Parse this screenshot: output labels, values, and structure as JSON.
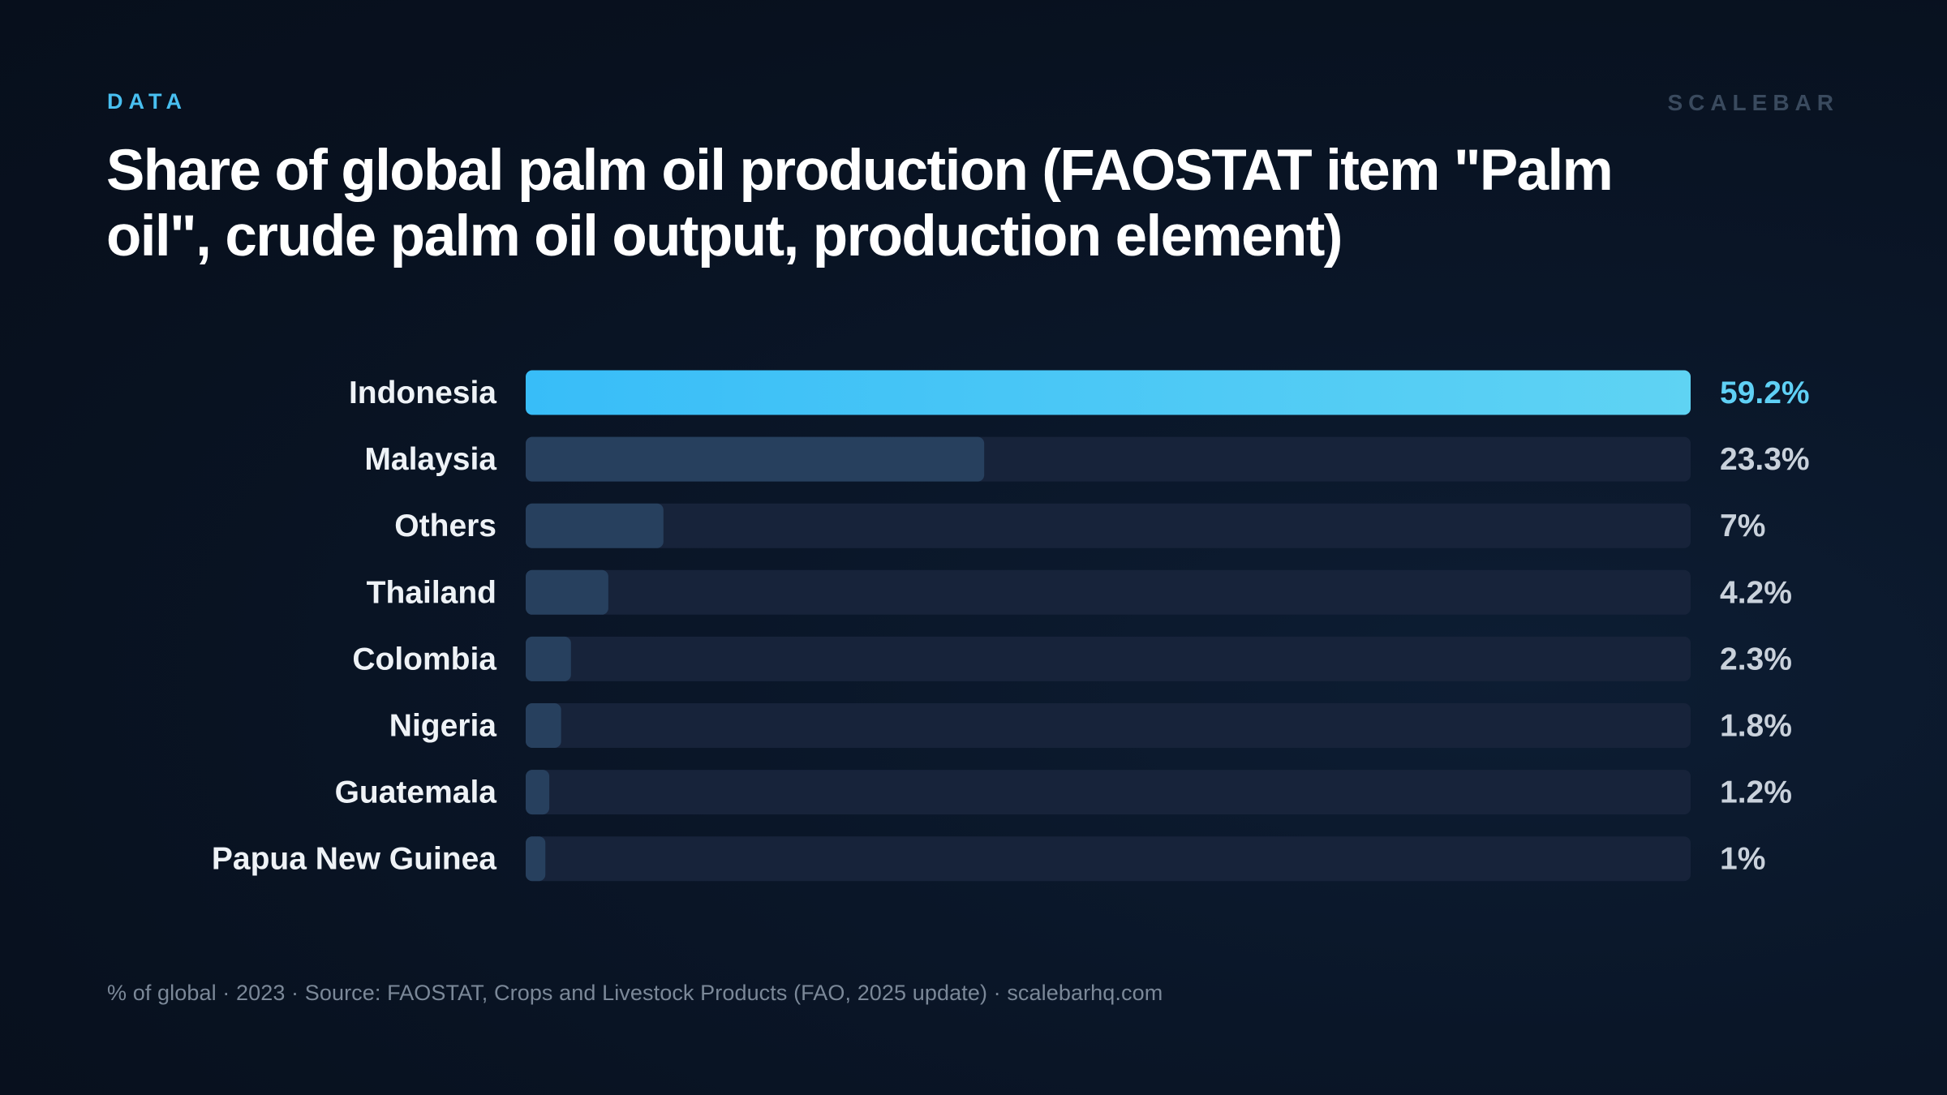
{
  "header": {
    "eyebrow": "DATA",
    "brand": "SCALEBAR",
    "title": "Share of global palm oil production (FAOSTAT item \"Palm oil\", crude palm oil output, production element)"
  },
  "footer": {
    "text": "% of global · 2023 · Source: FAOSTAT, Crops and Livestock Products (FAO, 2025 update) · scalebarhq.com"
  },
  "colors": {
    "background": "#0a1628",
    "accent_start": "#38bdf8",
    "accent_end": "#5fd3f3",
    "bar_muted": "#27405e",
    "track": "#17233a",
    "label": "#eef2f6",
    "value_accent": "#5fd0f5",
    "value_muted": "#c9d1db"
  },
  "chart_data": {
    "type": "bar",
    "orientation": "horizontal",
    "unit": "%",
    "categories": [
      "Indonesia",
      "Malaysia",
      "Others",
      "Thailand",
      "Colombia",
      "Nigeria",
      "Guatemala",
      "Papua New Guinea"
    ],
    "values": [
      59.2,
      23.3,
      7,
      4.2,
      2.3,
      1.8,
      1.2,
      1
    ],
    "value_labels": [
      "59.2%",
      "23.3%",
      "7%",
      "4.2%",
      "2.3%",
      "1.8%",
      "1.2%",
      "1%"
    ],
    "xlim": [
      0,
      59.2
    ],
    "highlight": "Indonesia",
    "grid": false,
    "title": "",
    "xlabel": "",
    "ylabel": ""
  }
}
